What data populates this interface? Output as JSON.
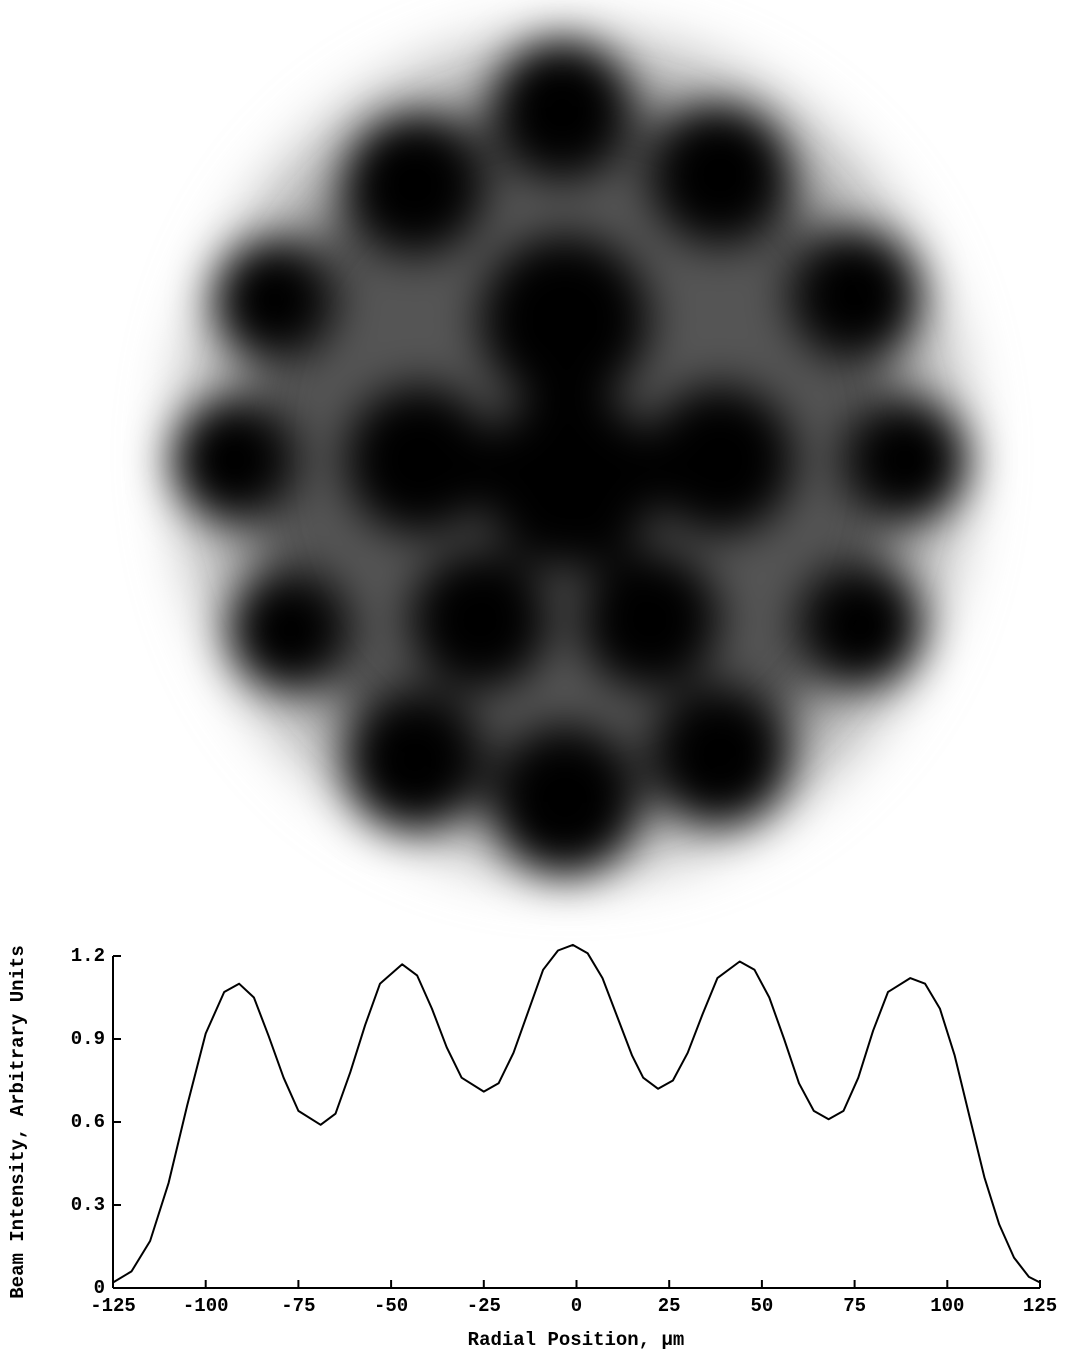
{
  "chart_data": {
    "type": "line",
    "ylabel": "Beam Intensity, Arbitrary Units",
    "xlabel": "Radial Position, μm",
    "xlim": [
      -125,
      125
    ],
    "ylim": [
      0,
      1.2
    ],
    "xticks": [
      -125,
      -100,
      -75,
      -50,
      -25,
      0,
      25,
      50,
      75,
      100,
      125
    ],
    "yticks": [
      0,
      0.3,
      0.6,
      0.9,
      1.2
    ],
    "color": "#000000",
    "x": [
      -125,
      -120,
      -115,
      -110,
      -105,
      -100,
      -95,
      -91,
      -87,
      -83,
      -79,
      -75,
      -69,
      -65,
      -61,
      -57,
      -53,
      -47,
      -43,
      -39,
      -35,
      -31,
      -25,
      -21,
      -17,
      -13,
      -9,
      -5,
      -1,
      3,
      7,
      11,
      15,
      18,
      22,
      26,
      30,
      34,
      38,
      44,
      48,
      52,
      56,
      60,
      64,
      68,
      72,
      76,
      80,
      84,
      90,
      94,
      98,
      102,
      106,
      110,
      114,
      118,
      122,
      125
    ],
    "values": [
      0.02,
      0.06,
      0.17,
      0.38,
      0.66,
      0.92,
      1.07,
      1.1,
      1.05,
      0.91,
      0.76,
      0.64,
      0.59,
      0.63,
      0.78,
      0.95,
      1.1,
      1.17,
      1.13,
      1.01,
      0.87,
      0.76,
      0.71,
      0.74,
      0.85,
      1.0,
      1.15,
      1.22,
      1.24,
      1.21,
      1.12,
      0.98,
      0.84,
      0.76,
      0.72,
      0.75,
      0.85,
      0.99,
      1.12,
      1.18,
      1.15,
      1.05,
      0.9,
      0.74,
      0.64,
      0.61,
      0.64,
      0.76,
      0.93,
      1.07,
      1.12,
      1.1,
      1.01,
      0.84,
      0.62,
      0.4,
      0.23,
      0.11,
      0.04,
      0.02
    ]
  }
}
